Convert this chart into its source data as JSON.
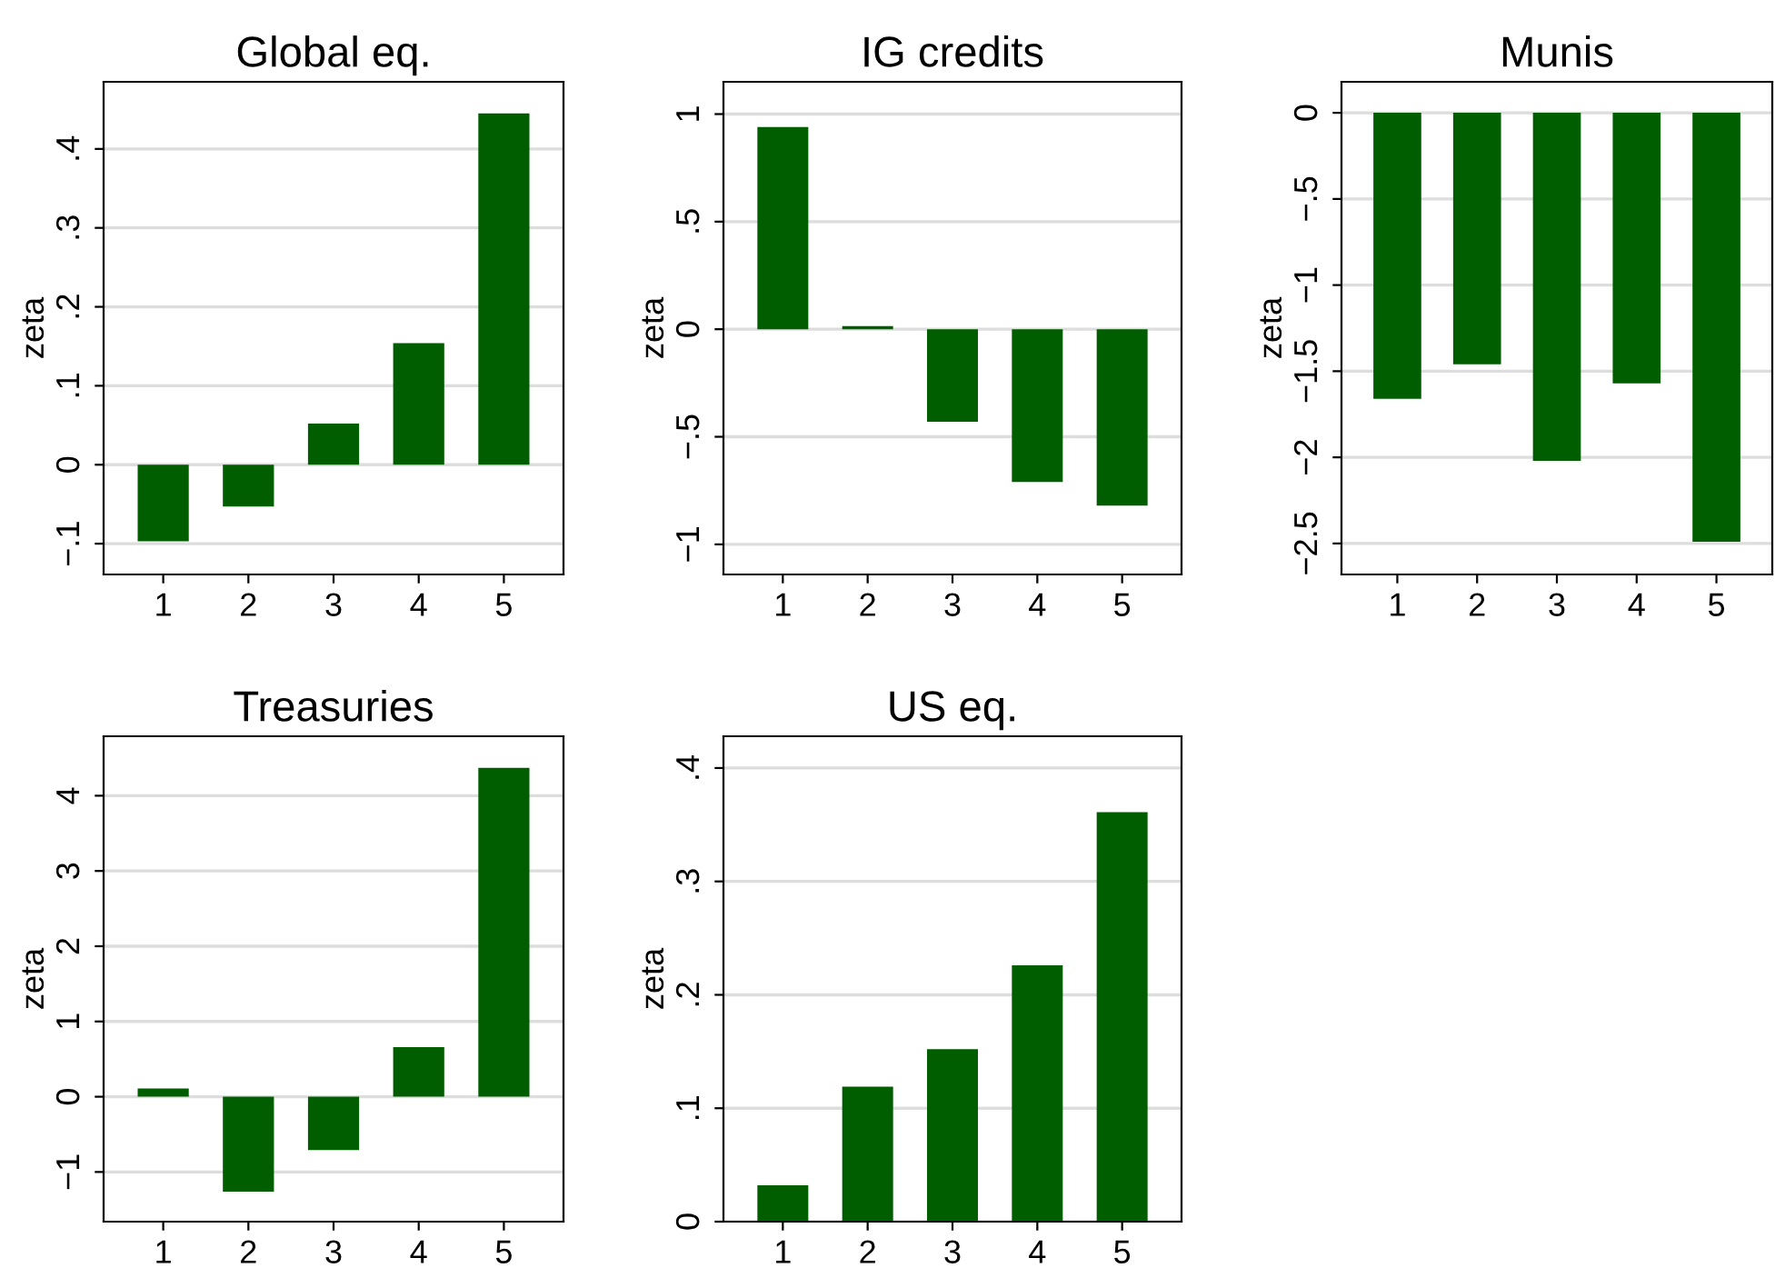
{
  "chart_data": [
    {
      "type": "bar",
      "title": "Global eq.",
      "ylabel": "zeta",
      "categories": [
        "1",
        "2",
        "3",
        "4",
        "5"
      ],
      "values": [
        -0.097,
        -0.053,
        0.052,
        0.154,
        0.445
      ],
      "color": "#005e00",
      "ylim": [
        -0.139,
        0.485
      ],
      "yticks": [
        {
          "value": -0.1,
          "label": "−.1"
        },
        0,
        {
          "value": 0.1,
          "label": ".1"
        },
        {
          "value": 0.2,
          "label": ".2"
        },
        {
          "value": 0.3,
          "label": ".3"
        },
        {
          "value": 0.4,
          "label": ".4"
        }
      ],
      "grid": "y"
    },
    {
      "type": "bar",
      "title": "IG credits",
      "ylabel": "zeta",
      "categories": [
        "1",
        "2",
        "3",
        "4",
        "5"
      ],
      "values": [
        0.94,
        0.014,
        -0.43,
        -0.71,
        -0.82
      ],
      "color": "#005e00",
      "ylim": [
        -1.14,
        1.15
      ],
      "yticks": [
        {
          "value": -1,
          "label": "−1"
        },
        {
          "value": -0.5,
          "label": "−.5"
        },
        0,
        {
          "value": 0.5,
          "label": ".5"
        },
        1
      ],
      "grid": "y"
    },
    {
      "type": "bar",
      "title": "Munis",
      "ylabel": "zeta",
      "categories": [
        "1",
        "2",
        "3",
        "4",
        "5"
      ],
      "values": [
        -1.66,
        -1.46,
        -2.02,
        -1.57,
        -2.49
      ],
      "color": "#005e00",
      "ylim": [
        -2.68,
        0.18
      ],
      "yticks": [
        {
          "value": -2.5,
          "label": "−2.5"
        },
        {
          "value": -2,
          "label": "−2"
        },
        {
          "value": -1.5,
          "label": "−1.5"
        },
        {
          "value": -1,
          "label": "−1"
        },
        {
          "value": -0.5,
          "label": "−.5"
        },
        0
      ],
      "grid": "y"
    },
    {
      "type": "bar",
      "title": "Treasuries",
      "ylabel": "zeta",
      "categories": [
        "1",
        "2",
        "3",
        "4",
        "5"
      ],
      "values": [
        0.11,
        -1.26,
        -0.71,
        0.66,
        4.37
      ],
      "color": "#005e00",
      "ylim": [
        -1.66,
        4.79
      ],
      "yticks": [
        {
          "value": -1,
          "label": "−1"
        },
        0,
        1,
        2,
        3,
        4
      ],
      "grid": "y"
    },
    {
      "type": "bar",
      "title": "US eq.",
      "ylabel": "zeta",
      "categories": [
        "1",
        "2",
        "3",
        "4",
        "5"
      ],
      "values": [
        0.032,
        0.119,
        0.152,
        0.226,
        0.361
      ],
      "color": "#005e00",
      "ylim": [
        0,
        0.428
      ],
      "yticks": [
        0,
        {
          "value": 0.1,
          "label": ".1"
        },
        {
          "value": 0.2,
          "label": ".2"
        },
        {
          "value": 0.3,
          "label": ".3"
        },
        {
          "value": 0.4,
          "label": ".4"
        }
      ],
      "grid": "y"
    }
  ]
}
